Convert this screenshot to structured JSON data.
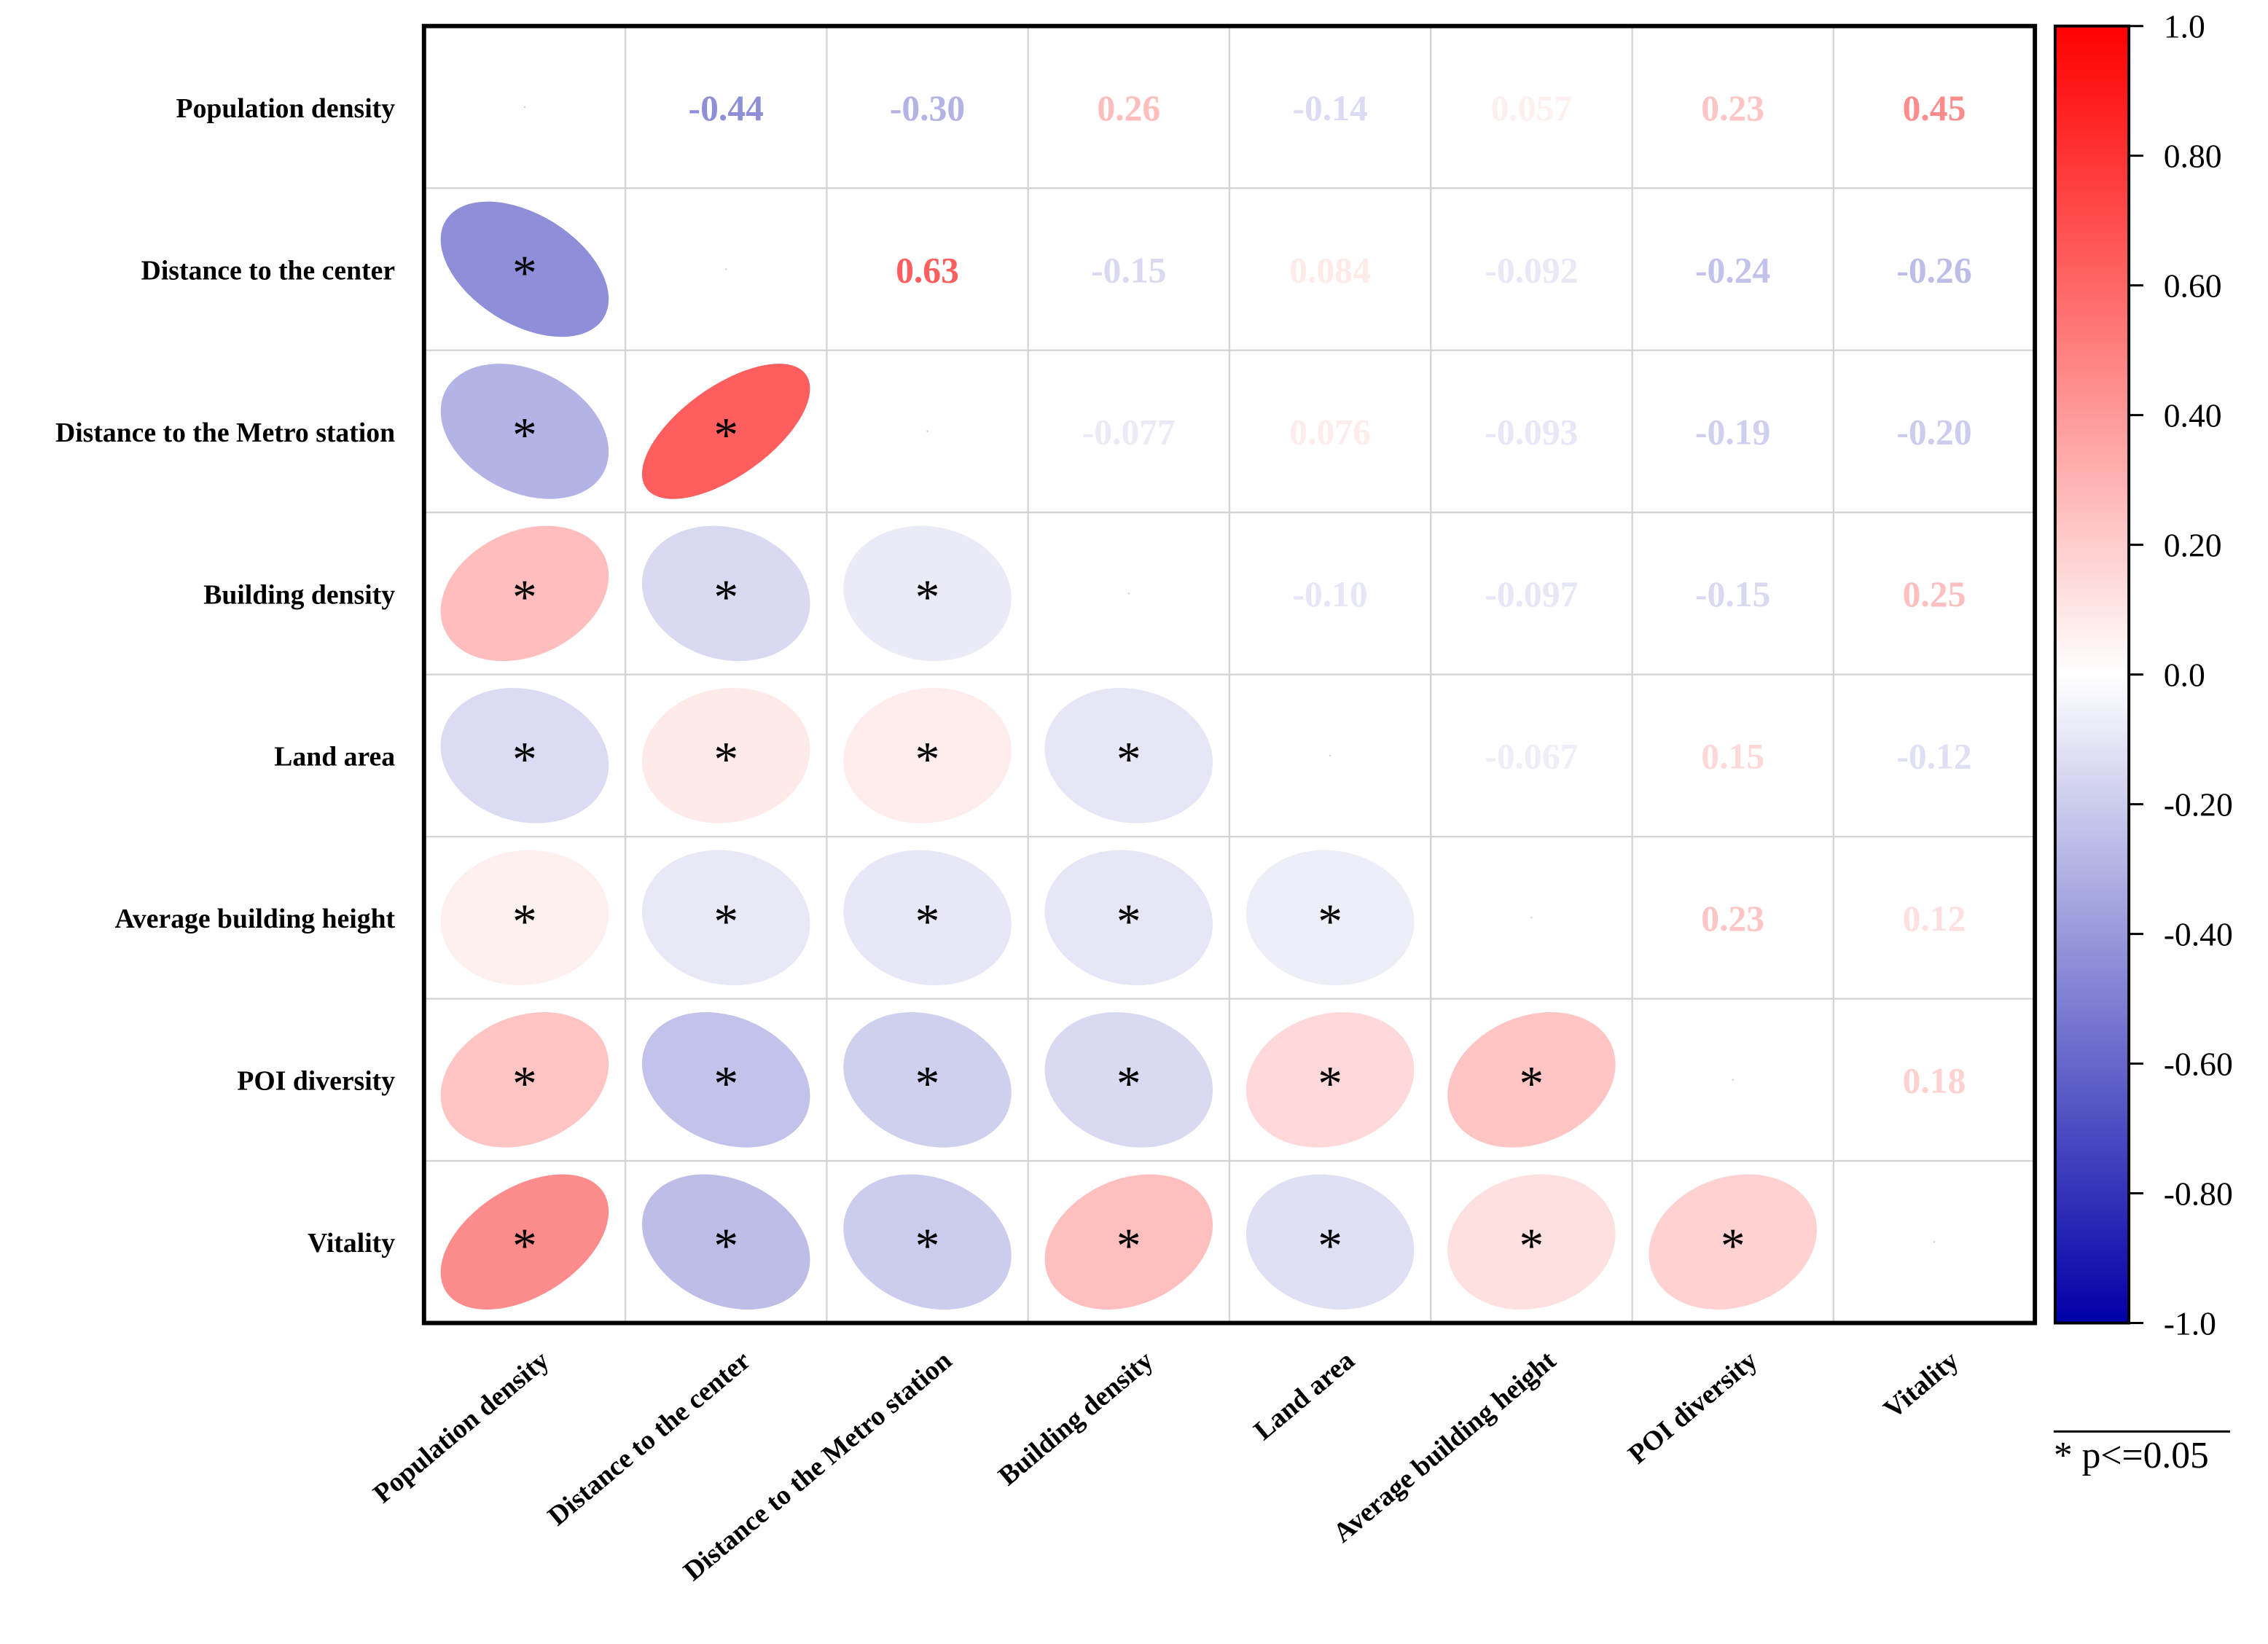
{
  "chart_data": {
    "type": "heatmap",
    "subtype": "correlation-matrix",
    "variables": [
      "Population density",
      "Distance to the center",
      "Distance to the Metro station",
      "Building density",
      "Land area",
      "Average building height",
      "POI diversity",
      "Vitality"
    ],
    "matrix": [
      [
        1,
        -0.44,
        -0.3,
        0.26,
        -0.14,
        0.057,
        0.23,
        0.45
      ],
      [
        -0.44,
        1,
        0.63,
        -0.15,
        0.084,
        -0.092,
        -0.24,
        -0.26
      ],
      [
        -0.3,
        0.63,
        1,
        -0.077,
        0.076,
        -0.093,
        -0.19,
        -0.2
      ],
      [
        0.26,
        -0.15,
        -0.077,
        1,
        -0.1,
        -0.097,
        -0.15,
        0.25
      ],
      [
        -0.14,
        0.084,
        0.076,
        -0.1,
        1,
        -0.067,
        0.15,
        -0.12
      ],
      [
        0.057,
        -0.092,
        -0.093,
        -0.097,
        -0.067,
        1,
        0.23,
        0.12
      ],
      [
        0.23,
        -0.24,
        -0.19,
        -0.15,
        0.15,
        0.23,
        1,
        0.18
      ],
      [
        0.45,
        -0.26,
        -0.2,
        0.25,
        -0.12,
        0.12,
        0.18,
        1
      ]
    ],
    "upper_triangle": "numbers",
    "lower_triangle": "ellipses",
    "lower_triangle_all_significant": true,
    "significance_marker": "*",
    "legend_note": "* p<=0.05",
    "colorbar": {
      "range": [
        -1.0,
        1.0
      ],
      "ticks": [
        "1.0",
        "0.80",
        "0.60",
        "0.40",
        "0.20",
        "0.0",
        "-0.20",
        "-0.40",
        "-0.60",
        "-0.80",
        "-1.0"
      ],
      "tick_values": [
        1.0,
        0.8,
        0.6,
        0.4,
        0.2,
        0.0,
        -0.2,
        -0.4,
        -0.6,
        -0.8,
        -1.0
      ],
      "positive_color": "#ff0000",
      "zero_color": "#ffffff",
      "negative_color": "#0000a8"
    }
  }
}
